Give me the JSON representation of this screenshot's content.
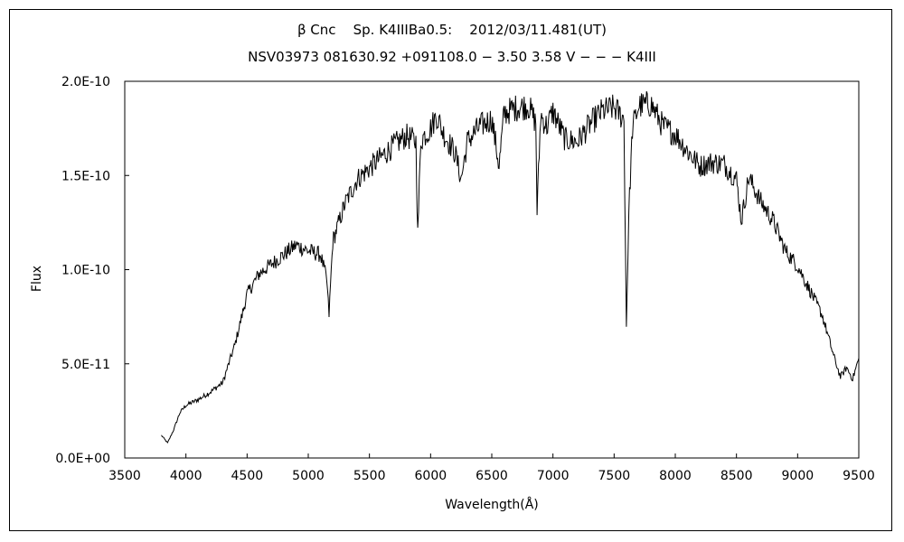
{
  "chart_data": {
    "type": "line",
    "title": "β Cnc    Sp. K4IIIBa0.5:    2012/03/11.481(UT)",
    "subtitle": "NSV03973 081630.92 +091108.0 − 3.50 3.58 V − − − K4III",
    "xlabel": "Wavelength(Å)",
    "ylabel": "Flux",
    "xlim": [
      3500,
      9500
    ],
    "ylim": [
      0,
      2e-10
    ],
    "x_ticks": [
      3500,
      4000,
      4500,
      5000,
      5500,
      6000,
      6500,
      7000,
      7500,
      8000,
      8500,
      9000,
      9500
    ],
    "x_tick_labels": [
      "3500",
      "4000",
      "4500",
      "5000",
      "5500",
      "6000",
      "6500",
      "7000",
      "7500",
      "8000",
      "8500",
      "9000",
      "9500"
    ],
    "y_ticks": [
      0,
      5e-11,
      1e-10,
      1.5e-10,
      2e-10
    ],
    "y_tick_labels": [
      "0.0E+00",
      "5.0E-11",
      "1.0E-10",
      "1.5E-10",
      "2.0E-10"
    ],
    "grid": false,
    "legend": "none",
    "line_color": "#000000",
    "series": [
      {
        "x": [
          3800,
          3850,
          3900,
          3950,
          4000,
          4100,
          4200,
          4300,
          4400,
          4500,
          4600,
          4700,
          4800,
          4900,
          5000,
          5100,
          5150,
          5170,
          5200,
          5300,
          5400,
          5500,
          5600,
          5700,
          5800,
          5880,
          5895,
          5920,
          6000,
          6050,
          6100,
          6200,
          6250,
          6300,
          6400,
          6500,
          6560,
          6600,
          6700,
          6800,
          6860,
          6870,
          6900,
          6950,
          7000,
          7100,
          7200,
          7300,
          7400,
          7500,
          7580,
          7600,
          7620,
          7650,
          7700,
          7800,
          7900,
          8000,
          8100,
          8200,
          8300,
          8400,
          8500,
          8540,
          8600,
          8700,
          8800,
          8900,
          9000,
          9100,
          9200,
          9300,
          9350,
          9400,
          9450,
          9500
        ],
        "y": [
          1.2e-11,
          8e-12,
          1.5e-11,
          2.4e-11,
          2.8e-11,
          3.1e-11,
          3.5e-11,
          4e-11,
          6e-11,
          8.7e-11,
          9.8e-11,
          1.03e-10,
          1.08e-10,
          1.13e-10,
          1.1e-10,
          1.08e-10,
          9.5e-11,
          7.6e-11,
          1.15e-10,
          1.35e-10,
          1.48e-10,
          1.54e-10,
          1.6e-10,
          1.66e-10,
          1.71e-10,
          1.68e-10,
          1.19e-10,
          1.69e-10,
          1.75e-10,
          1.82e-10,
          1.73e-10,
          1.62e-10,
          1.48e-10,
          1.68e-10,
          1.76e-10,
          1.8e-10,
          1.55e-10,
          1.83e-10,
          1.86e-10,
          1.87e-10,
          1.78e-10,
          1.31e-10,
          1.82e-10,
          1.76e-10,
          1.84e-10,
          1.69e-10,
          1.68e-10,
          1.77e-10,
          1.84e-10,
          1.86e-10,
          1.8e-10,
          7e-11,
          1.3e-10,
          1.75e-10,
          1.87e-10,
          1.88e-10,
          1.76e-10,
          1.72e-10,
          1.63e-10,
          1.55e-10,
          1.57e-10,
          1.56e-10,
          1.48e-10,
          1.26e-10,
          1.49e-10,
          1.36e-10,
          1.26e-10,
          1.1e-10,
          1.02e-10,
          8.9e-11,
          7.6e-11,
          5.3e-11,
          4.3e-11,
          4.8e-11,
          4.2e-11,
          5.3e-11
        ]
      }
    ]
  }
}
